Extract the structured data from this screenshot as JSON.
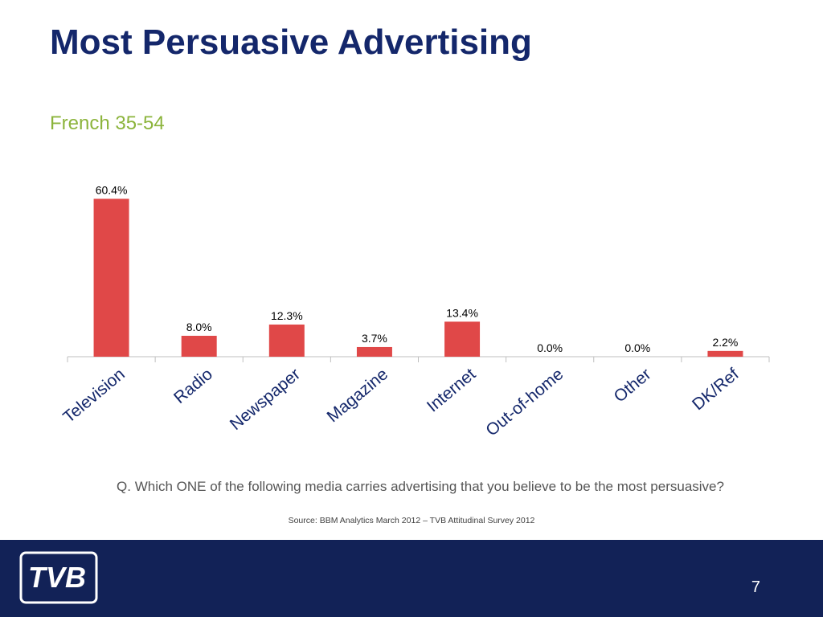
{
  "slide": {
    "title": "Most Persuasive Advertising",
    "subtitle": "French 35-54",
    "question": "Q. Which ONE of the following media carries advertising that you believe to be the most persuasive?",
    "source": "Source: BBM Analytics March 2012 – TVB Attitudinal Survey 2012",
    "page_number": "7",
    "logo_text": "TVB"
  },
  "colors": {
    "title": "#14276b",
    "subtitle": "#8cb43c",
    "bar": "#e04848",
    "footer": "#122257"
  },
  "chart_data": {
    "type": "bar",
    "categories": [
      "Television",
      "Radio",
      "Newspaper",
      "Magazine",
      "Internet",
      "Out-of-home",
      "Other",
      "DK/Ref"
    ],
    "values": [
      60.4,
      8.0,
      12.3,
      3.7,
      13.4,
      0.0,
      0.0,
      2.2
    ],
    "data_labels": [
      "60.4%",
      "8.0%",
      "12.3%",
      "3.7%",
      "13.4%",
      "0.0%",
      "0.0%",
      "2.2%"
    ],
    "title": "",
    "xlabel": "",
    "ylabel": "",
    "ylim": [
      0,
      63
    ],
    "grid": false,
    "legend": "none",
    "tick_label_rotation": "rotated"
  }
}
